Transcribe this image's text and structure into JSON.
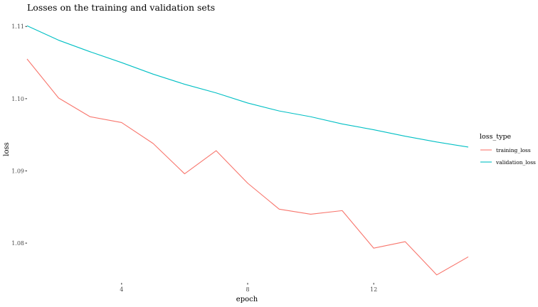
{
  "chart_data": {
    "type": "line",
    "title": "Losses on the training and validation sets",
    "xlabel": "epoch",
    "ylabel": "loss",
    "xlim": [
      1,
      15
    ],
    "ylim": [
      1.0745,
      1.1115
    ],
    "x_ticks": [
      4,
      8,
      12
    ],
    "y_ticks": [
      1.08,
      1.09,
      1.1,
      1.11
    ],
    "grid": false,
    "legend": {
      "title": "loss_type",
      "position": "right"
    },
    "x": [
      1,
      2,
      3,
      4,
      5,
      6,
      7,
      8,
      9,
      10,
      11,
      12,
      13,
      14,
      15
    ],
    "series": [
      {
        "name": "training_loss",
        "color": "#F8766D",
        "values": [
          1.1055,
          1.1001,
          1.0975,
          1.0967,
          1.0938,
          1.0896,
          1.0928,
          1.0883,
          1.0847,
          1.084,
          1.0845,
          1.0793,
          1.0802,
          1.0756,
          1.0781
        ]
      },
      {
        "name": "validation_loss",
        "color": "#00BFC4",
        "values": [
          1.1101,
          1.1081,
          1.1065,
          1.105,
          1.1034,
          1.102,
          1.1008,
          1.0994,
          1.0983,
          1.0975,
          1.0965,
          1.0957,
          1.0948,
          1.094,
          1.0933
        ]
      }
    ]
  }
}
